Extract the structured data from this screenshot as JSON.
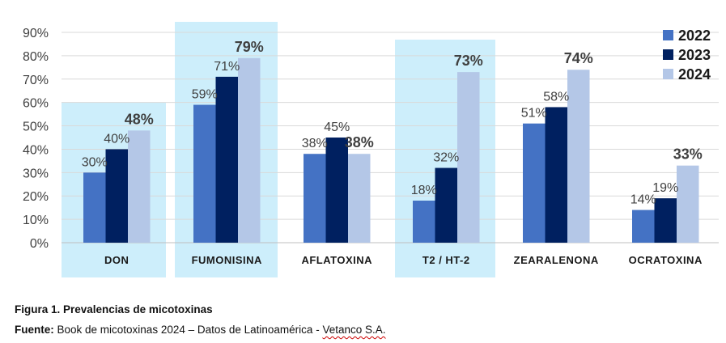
{
  "chart_data": {
    "type": "bar",
    "title": "",
    "xlabel": "",
    "ylabel": "",
    "ylim": [
      0,
      90
    ],
    "ytick_step": 10,
    "ytick_labels": [
      "0%",
      "10%",
      "20%",
      "30%",
      "40%",
      "50%",
      "60%",
      "70%",
      "80%",
      "90%"
    ],
    "grid": true,
    "legend_position": "top-right",
    "categories": [
      "DON",
      "FUMONISINA",
      "AFLATOXINA",
      "T2 / HT-2",
      "ZEARALENONA",
      "OCRATOXINA"
    ],
    "highlighted_categories": [
      "DON",
      "FUMONISINA",
      "T2 / HT-2"
    ],
    "series": [
      {
        "name": "2022",
        "values": [
          30,
          59,
          38,
          18,
          51,
          14
        ],
        "labels": [
          "30%",
          "59%",
          "38%",
          "18%",
          "51%",
          "14%"
        ],
        "color": "#4472c4"
      },
      {
        "name": "2023",
        "values": [
          40,
          71,
          45,
          32,
          58,
          19
        ],
        "labels": [
          "40%",
          "71%",
          "45%",
          "32%",
          "58%",
          "19%"
        ],
        "color": "#002060"
      },
      {
        "name": "2024",
        "values": [
          48,
          79,
          38,
          73,
          74,
          33
        ],
        "labels": [
          "48%",
          "79%",
          "38%",
          "73%",
          "74%",
          "33%"
        ],
        "color": "#b4c7e7"
      }
    ],
    "highlight_color": "#cdeefb"
  },
  "caption": {
    "title": "Figura 1. Prevalencias de micotoxinas",
    "source_label": "Fuente:",
    "source_text": " Book de micotoxinas 2024 – Datos de Latinoamérica - ",
    "source_org": "Vetanco S.A."
  }
}
